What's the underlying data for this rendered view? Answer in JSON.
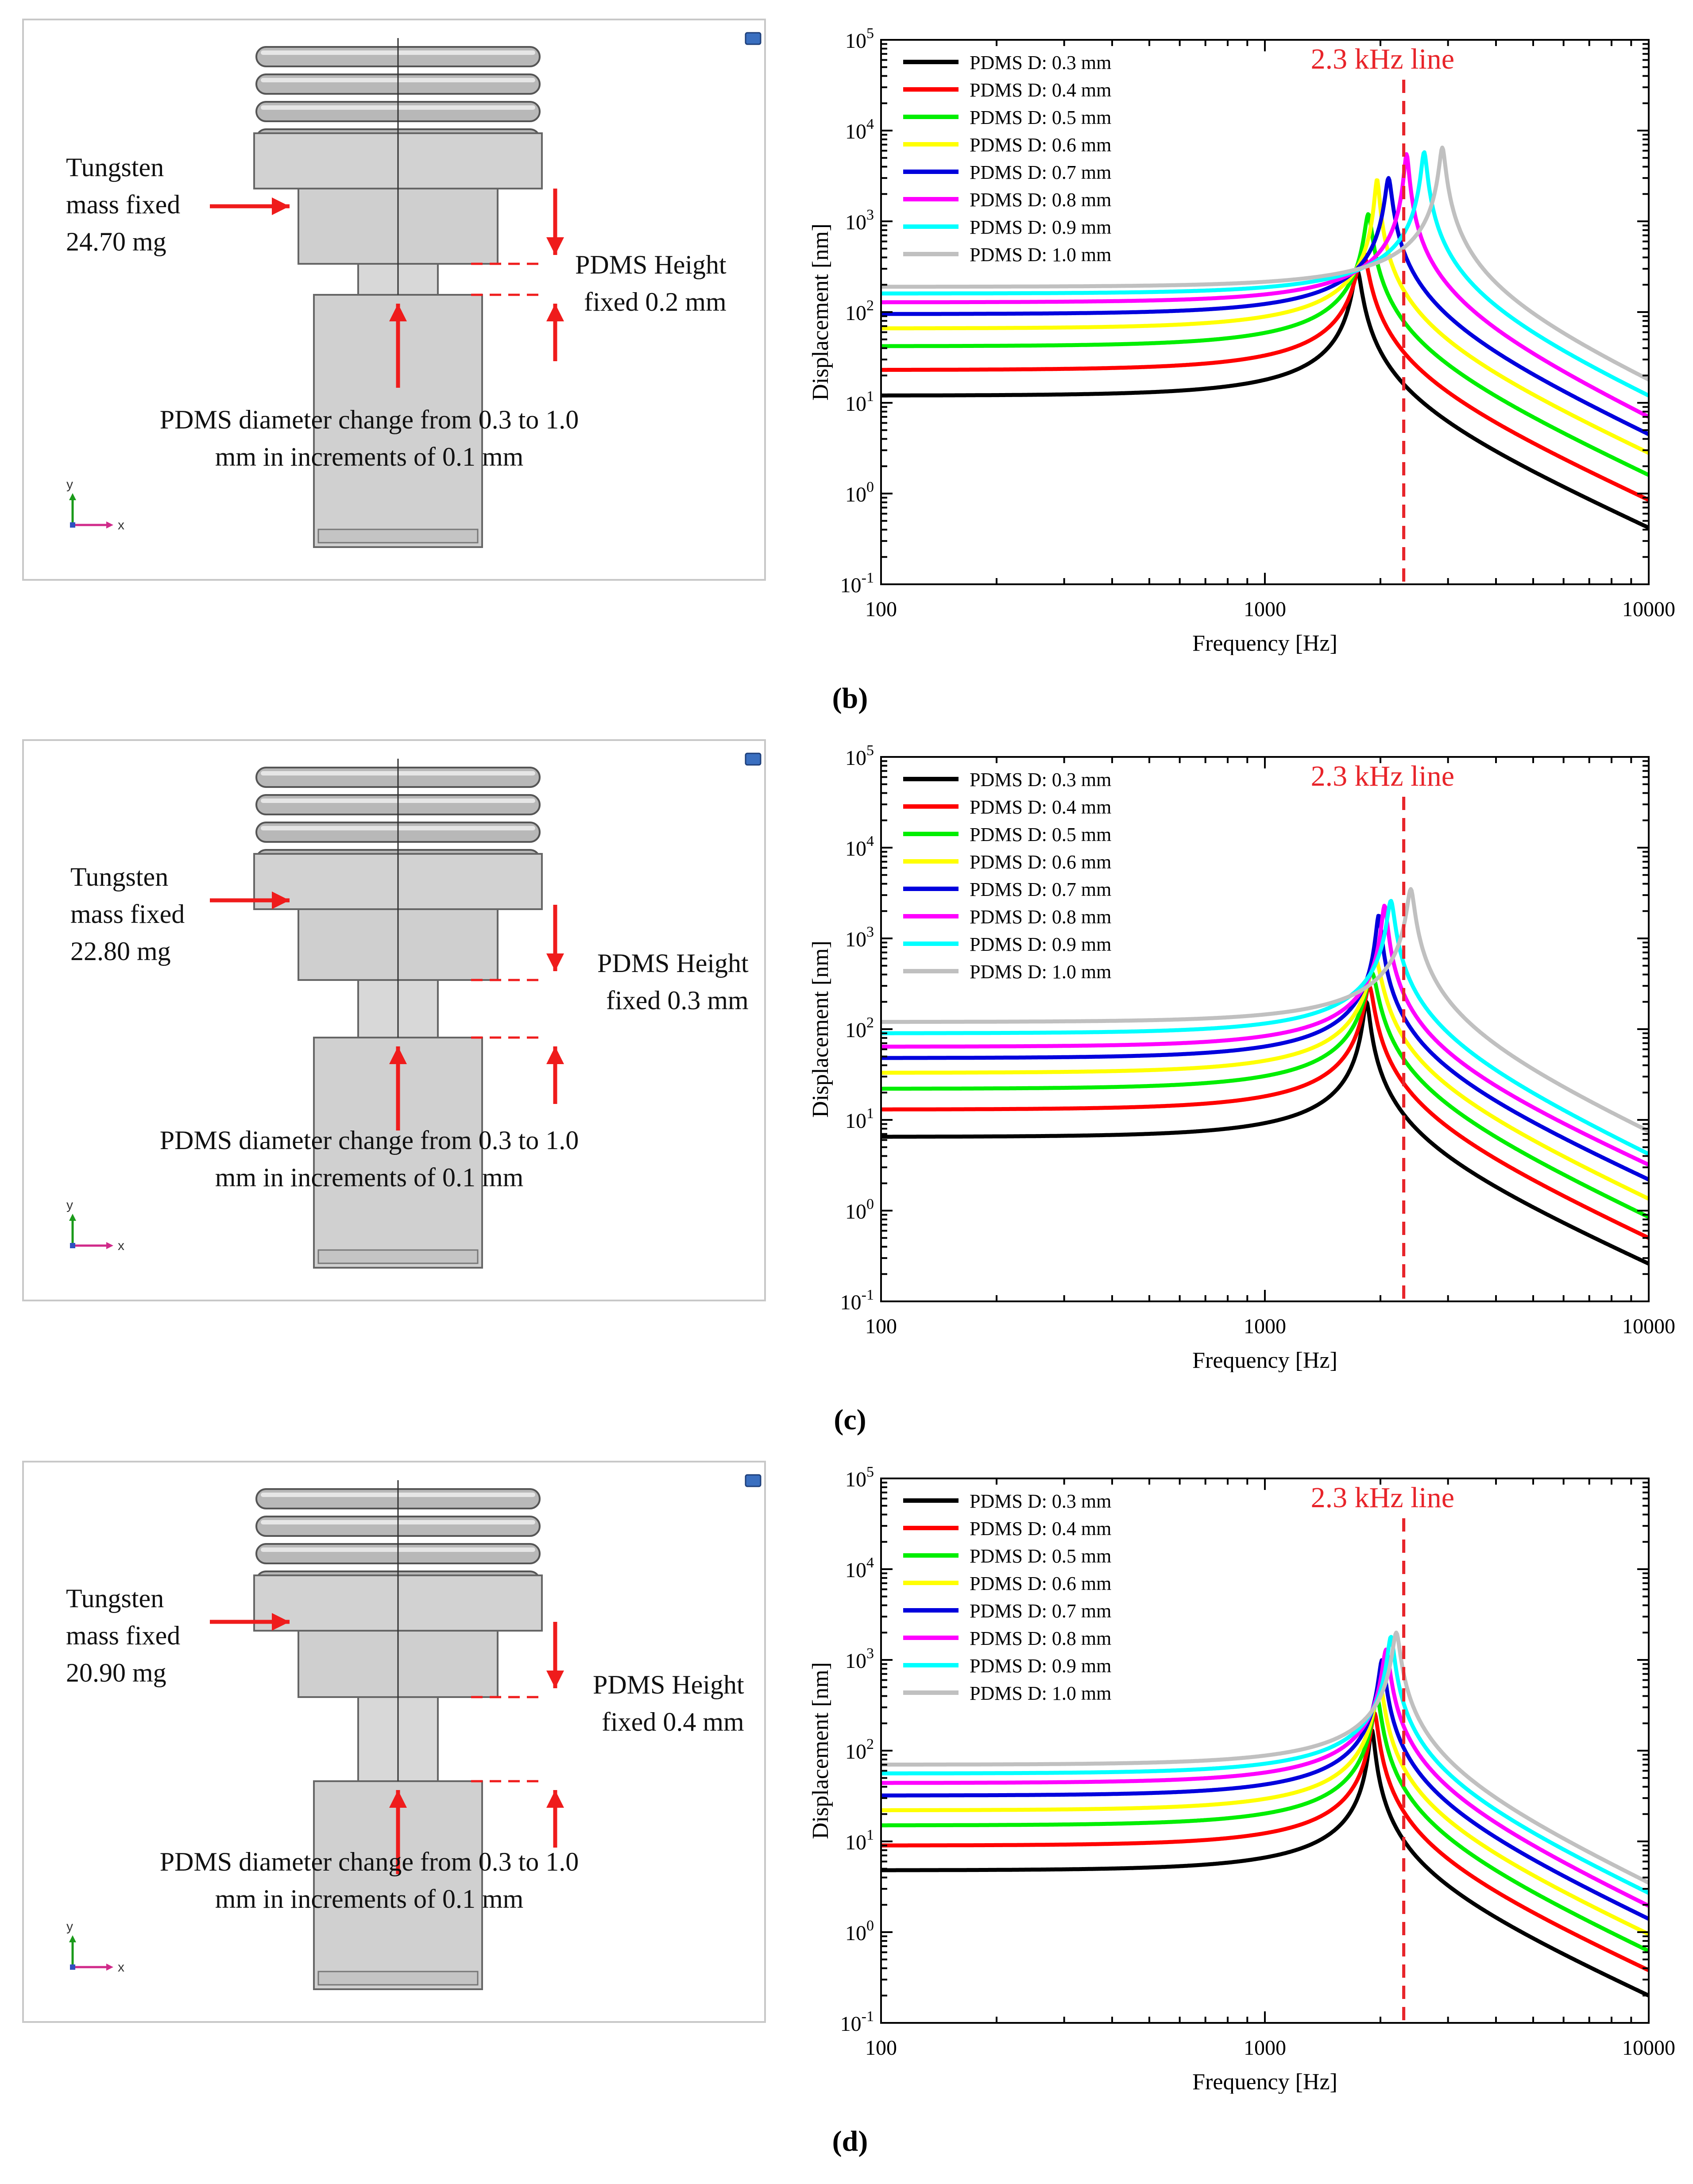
{
  "figure": {
    "sub_labels": [
      "(b)",
      "(c)",
      "(d)"
    ],
    "panels": [
      {
        "label": "(b)",
        "mass_text": [
          "Tungsten",
          "mass fixed",
          "24.70 mg"
        ],
        "height_text": [
          "PDMS Height",
          "fixed 0.2 mm"
        ],
        "diameter_text": [
          "PDMS diameter change from 0.3 to 1.0",
          "mm in increments of 0.1 mm"
        ],
        "axis_y_label": "y",
        "axis_x_label": "x"
      },
      {
        "label": "(c)",
        "mass_text": [
          "Tungsten",
          "mass fixed",
          "22.80 mg"
        ],
        "height_text": [
          "PDMS Height",
          "fixed 0.3 mm"
        ],
        "diameter_text": [
          "PDMS diameter change from 0.3 to 1.0",
          "mm in increments of 0.1 mm"
        ],
        "axis_y_label": "y",
        "axis_x_label": "x"
      },
      {
        "label": "(d)",
        "mass_text": [
          "Tungsten",
          "mass fixed",
          "20.90 mg"
        ],
        "height_text": [
          "PDMS Height",
          "fixed 0.4 mm"
        ],
        "diameter_text": [
          "PDMS diameter change from 0.3 to 1.0",
          "mm in increments of 0.1 mm"
        ],
        "axis_y_label": "y",
        "axis_x_label": "x"
      }
    ]
  },
  "chart_data": [
    {
      "type": "line",
      "panel": "(b)",
      "xlabel": "Frequency [Hz]",
      "ylabel": "Displacement [nm]",
      "xscale": "log",
      "yscale": "log",
      "xlim": [
        100,
        10000
      ],
      "ylim": [
        0.1,
        100000
      ],
      "x_ticks": [
        "100",
        "1000",
        "10000"
      ],
      "y_ticks": [
        "10^-1",
        "10^0",
        "10^1",
        "10^2",
        "10^3",
        "10^4",
        "10^5"
      ],
      "vline": {
        "x": 2300,
        "label": "2.3 kHz line",
        "color": "#e8242a"
      },
      "legend_position": "top-left",
      "series": [
        {
          "name": "PDMS D: 0.3 mm",
          "color": "#000000",
          "low": 12,
          "fn": 1740,
          "peak": 290,
          "end": 0.42
        },
        {
          "name": "PDMS D: 0.4 mm",
          "color": "#ff0000",
          "low": 23,
          "fn": 1800,
          "peak": 480,
          "end": 0.85
        },
        {
          "name": "PDMS D: 0.5 mm",
          "color": "#00ee00",
          "low": 42,
          "fn": 1860,
          "peak": 1200,
          "end": 1.6
        },
        {
          "name": "PDMS D: 0.6 mm",
          "color": "#ffff00",
          "low": 66,
          "fn": 1960,
          "peak": 2900,
          "end": 2.8
        },
        {
          "name": "PDMS D: 0.7 mm",
          "color": "#0000dd",
          "low": 95,
          "fn": 2100,
          "peak": 3000,
          "end": 4.5
        },
        {
          "name": "PDMS D: 0.8 mm",
          "color": "#ff00ff",
          "low": 128,
          "fn": 2340,
          "peak": 5500,
          "end": 7.0
        },
        {
          "name": "PDMS D: 0.9 mm",
          "color": "#00ffff",
          "low": 160,
          "fn": 2600,
          "peak": 5800,
          "end": 12
        },
        {
          "name": "PDMS D: 1.0 mm",
          "color": "#c0c0c0",
          "low": 190,
          "fn": 2900,
          "peak": 6500,
          "end": 18
        }
      ]
    },
    {
      "type": "line",
      "panel": "(c)",
      "xlabel": "Frequency [Hz]",
      "ylabel": "Displacement [nm]",
      "xscale": "log",
      "yscale": "log",
      "xlim": [
        100,
        10000
      ],
      "ylim": [
        0.1,
        100000
      ],
      "x_ticks": [
        "100",
        "1000",
        "10000"
      ],
      "y_ticks": [
        "10^-1",
        "10^0",
        "10^1",
        "10^2",
        "10^3",
        "10^4",
        "10^5"
      ],
      "vline": {
        "x": 2300,
        "label": "2.3 kHz line",
        "color": "#e8242a"
      },
      "legend_position": "top-left",
      "series": [
        {
          "name": "PDMS D: 0.3 mm",
          "color": "#000000",
          "low": 6.5,
          "fn": 1840,
          "peak": 200,
          "end": 0.26
        },
        {
          "name": "PDMS D: 0.4 mm",
          "color": "#ff0000",
          "low": 13,
          "fn": 1870,
          "peak": 300,
          "end": 0.5
        },
        {
          "name": "PDMS D: 0.5 mm",
          "color": "#00ee00",
          "low": 22,
          "fn": 1900,
          "peak": 420,
          "end": 0.85
        },
        {
          "name": "PDMS D: 0.6 mm",
          "color": "#ffff00",
          "low": 33,
          "fn": 1940,
          "peak": 600,
          "end": 1.35
        },
        {
          "name": "PDMS D: 0.7 mm",
          "color": "#0000dd",
          "low": 48,
          "fn": 1980,
          "peak": 1800,
          "end": 2.2
        },
        {
          "name": "PDMS D: 0.8 mm",
          "color": "#ff00ff",
          "low": 64,
          "fn": 2050,
          "peak": 2300,
          "end": 3.2
        },
        {
          "name": "PDMS D: 0.9 mm",
          "color": "#00ffff",
          "low": 90,
          "fn": 2130,
          "peak": 2600,
          "end": 4.2
        },
        {
          "name": "PDMS D: 1.0 mm",
          "color": "#c0c0c0",
          "low": 120,
          "fn": 2400,
          "peak": 3500,
          "end": 7.5
        }
      ]
    },
    {
      "type": "line",
      "panel": "(d)",
      "xlabel": "Frequency [Hz]",
      "ylabel": "Displacement [nm]",
      "xscale": "log",
      "yscale": "log",
      "xlim": [
        100,
        10000
      ],
      "ylim": [
        0.1,
        100000
      ],
      "x_ticks": [
        "100",
        "1000",
        "10000"
      ],
      "y_ticks": [
        "10^-1",
        "10^0",
        "10^1",
        "10^2",
        "10^3",
        "10^4",
        "10^5"
      ],
      "vline": {
        "x": 2300,
        "label": "2.3 kHz line",
        "color": "#e8242a"
      },
      "legend_position": "top-left",
      "series": [
        {
          "name": "PDMS D: 0.3 mm",
          "color": "#000000",
          "low": 4.8,
          "fn": 1900,
          "peak": 170,
          "end": 0.2
        },
        {
          "name": "PDMS D: 0.4 mm",
          "color": "#ff0000",
          "low": 9,
          "fn": 1930,
          "peak": 260,
          "end": 0.38
        },
        {
          "name": "PDMS D: 0.5 mm",
          "color": "#00ee00",
          "low": 15,
          "fn": 1960,
          "peak": 380,
          "end": 0.62
        },
        {
          "name": "PDMS D: 0.6 mm",
          "color": "#ffff00",
          "low": 22,
          "fn": 1990,
          "peak": 560,
          "end": 0.95
        },
        {
          "name": "PDMS D: 0.7 mm",
          "color": "#0000dd",
          "low": 32,
          "fn": 2020,
          "peak": 1000,
          "end": 1.4
        },
        {
          "name": "PDMS D: 0.8 mm",
          "color": "#ff00ff",
          "low": 44,
          "fn": 2070,
          "peak": 1300,
          "end": 1.95
        },
        {
          "name": "PDMS D: 0.9 mm",
          "color": "#00ffff",
          "low": 56,
          "fn": 2130,
          "peak": 1800,
          "end": 2.7
        },
        {
          "name": "PDMS D: 1.0 mm",
          "color": "#c0c0c0",
          "low": 70,
          "fn": 2200,
          "peak": 2000,
          "end": 3.5
        }
      ]
    }
  ]
}
